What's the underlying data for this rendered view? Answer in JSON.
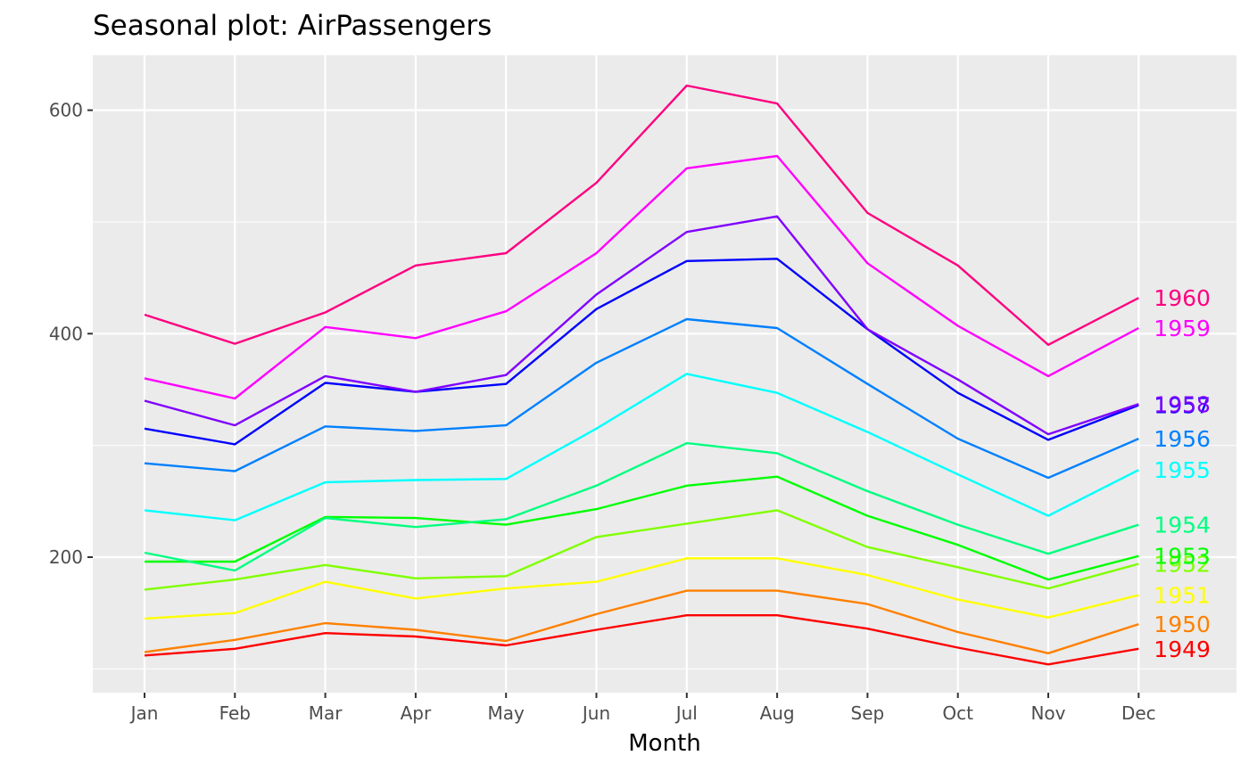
{
  "chart_data": {
    "type": "line",
    "title": "Seasonal plot: AirPassengers",
    "xlabel": "Month",
    "ylabel": "",
    "categories": [
      "Jan",
      "Feb",
      "Mar",
      "Apr",
      "May",
      "Jun",
      "Jul",
      "Aug",
      "Sep",
      "Oct",
      "Nov",
      "Dec"
    ],
    "ylim": [
      80,
      640
    ],
    "yticks": [
      200,
      400,
      600
    ],
    "grid": true,
    "legend": "none",
    "series": [
      {
        "name": "1949",
        "color": "#FF0000",
        "values": [
          112,
          118,
          132,
          129,
          121,
          135,
          148,
          148,
          136,
          119,
          104,
          118
        ]
      },
      {
        "name": "1950",
        "color": "#FF8000",
        "values": [
          115,
          126,
          141,
          135,
          125,
          149,
          170,
          170,
          158,
          133,
          114,
          140
        ]
      },
      {
        "name": "1951",
        "color": "#FFFF00",
        "values": [
          145,
          150,
          178,
          163,
          172,
          178,
          199,
          199,
          184,
          162,
          146,
          166
        ]
      },
      {
        "name": "1952",
        "color": "#80FF00",
        "values": [
          171,
          180,
          193,
          181,
          183,
          218,
          230,
          242,
          209,
          191,
          172,
          194
        ]
      },
      {
        "name": "1953",
        "color": "#00FF00",
        "values": [
          196,
          196,
          236,
          235,
          229,
          243,
          264,
          272,
          237,
          211,
          180,
          201
        ]
      },
      {
        "name": "1954",
        "color": "#00FF80",
        "values": [
          204,
          188,
          235,
          227,
          234,
          264,
          302,
          293,
          259,
          229,
          203,
          229
        ]
      },
      {
        "name": "1955",
        "color": "#00FFFF",
        "values": [
          242,
          233,
          267,
          269,
          270,
          315,
          364,
          347,
          312,
          274,
          237,
          278
        ]
      },
      {
        "name": "1956",
        "color": "#0080FF",
        "values": [
          284,
          277,
          317,
          313,
          318,
          374,
          413,
          405,
          355,
          306,
          271,
          306
        ]
      },
      {
        "name": "1957",
        "color": "#0000FF",
        "values": [
          315,
          301,
          356,
          348,
          355,
          422,
          465,
          467,
          404,
          347,
          305,
          336
        ]
      },
      {
        "name": "1958",
        "color": "#8000FF",
        "values": [
          340,
          318,
          362,
          348,
          363,
          435,
          491,
          505,
          404,
          359,
          310,
          337
        ]
      },
      {
        "name": "1959",
        "color": "#FF00FF",
        "values": [
          360,
          342,
          406,
          396,
          420,
          472,
          548,
          559,
          463,
          407,
          362,
          405
        ]
      },
      {
        "name": "1960",
        "color": "#FF0080",
        "values": [
          417,
          391,
          419,
          461,
          472,
          535,
          622,
          606,
          508,
          461,
          390,
          432
        ]
      }
    ]
  }
}
